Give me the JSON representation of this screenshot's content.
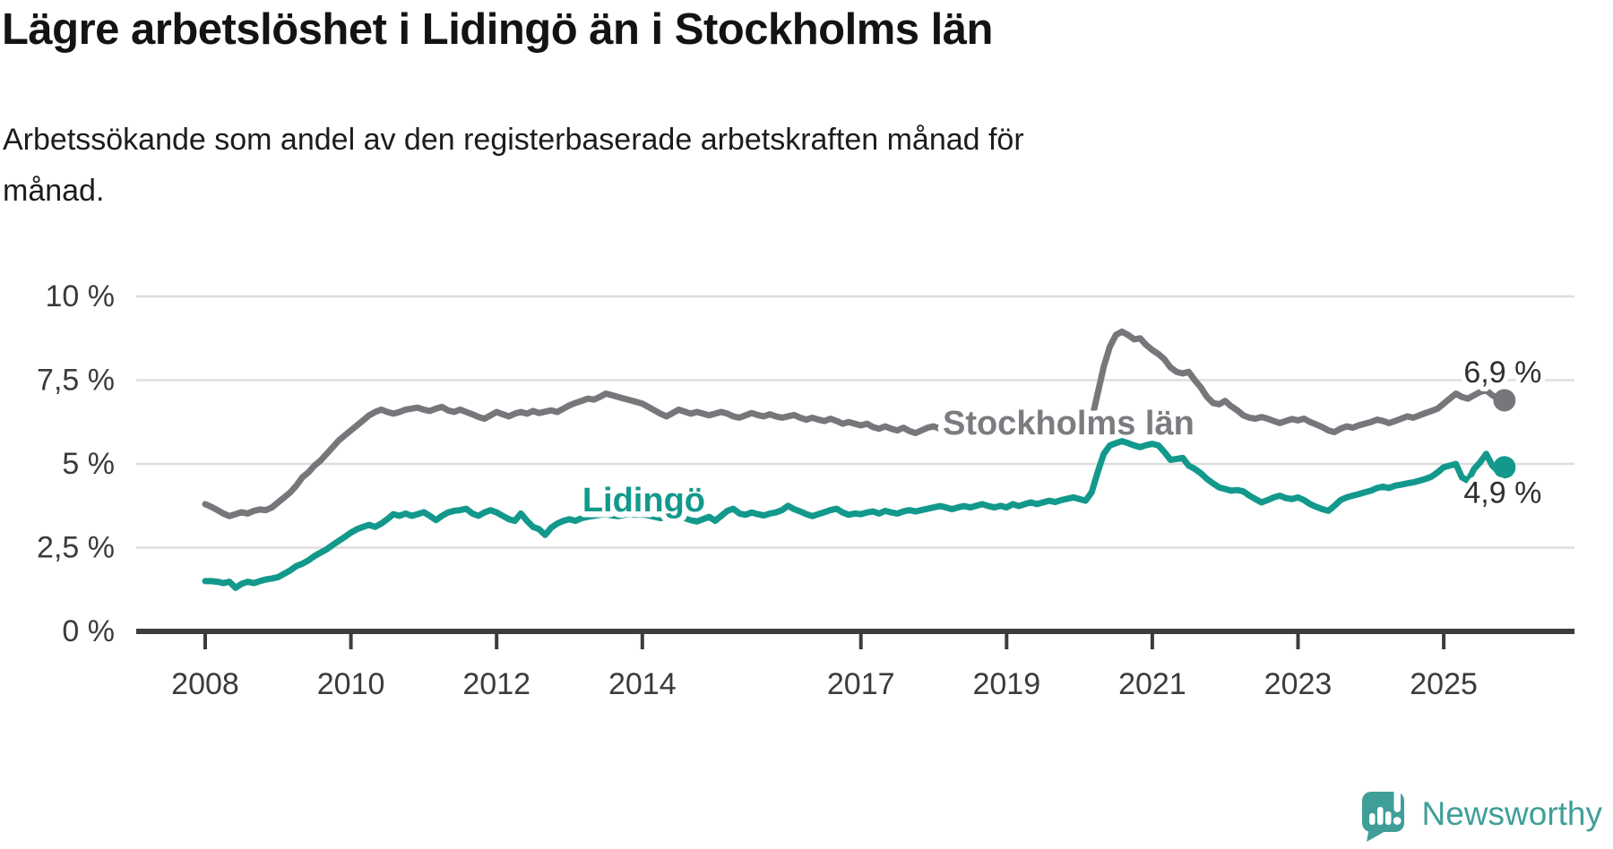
{
  "title": "Lägre arbetslöshet i Lidingö än i Stockholms län",
  "subtitle": {
    "line1": "Arbetssökande som andel av den registerbaserade arbetskraften månad för",
    "line2": "månad."
  },
  "footer": {
    "brand": "Newsworthy",
    "brand_color": "#3f9f98",
    "logo_icon": "speech-bubble-bar-chart-icon"
  },
  "chart_data": {
    "type": "line",
    "unit": "%",
    "title": "Lägre arbetslöshet i Lidingö än i Stockholms län",
    "xlabel": "",
    "ylabel": "",
    "ylim": [
      0,
      10
    ],
    "x_range_years": [
      2008,
      2025.9
    ],
    "grid": "horizontal-only",
    "legend_position": "inline-labels",
    "style": {
      "grid_color": "#dedede",
      "axis_color": "#3c3c3c",
      "text_color": "#3b3b3b",
      "background": "#ffffff"
    },
    "y_ticks": [
      {
        "value": 10,
        "label": "10 %"
      },
      {
        "value": 7.5,
        "label": "7,5 %"
      },
      {
        "value": 5,
        "label": "5 %"
      },
      {
        "value": 2.5,
        "label": "2,5 %"
      },
      {
        "value": 0,
        "label": "0 %"
      }
    ],
    "x_ticks": [
      {
        "value": 2008,
        "label": "2008"
      },
      {
        "value": 2010,
        "label": "2010"
      },
      {
        "value": 2012,
        "label": "2012"
      },
      {
        "value": 2014,
        "label": "2014"
      },
      {
        "value": 2017,
        "label": "2017"
      },
      {
        "value": 2019,
        "label": "2019"
      },
      {
        "value": 2021,
        "label": "2021"
      },
      {
        "value": 2023,
        "label": "2023"
      },
      {
        "value": 2025,
        "label": "2025"
      }
    ],
    "series": [
      {
        "id": "stockholms-lan",
        "name": "Stockholms län",
        "color": "#76767b",
        "label_color": "#7b7b80",
        "label_pos": {
          "year": 2019.85,
          "value": 6.23
        },
        "end_label": "6,9 %",
        "end_value": 6.9,
        "end_label_dy": -20,
        "start_year": 2008,
        "points_per_year": 12,
        "values": [
          3.8,
          3.72,
          3.62,
          3.52,
          3.44,
          3.5,
          3.56,
          3.52,
          3.6,
          3.64,
          3.62,
          3.7,
          3.85,
          4.0,
          4.15,
          4.35,
          4.6,
          4.75,
          4.95,
          5.1,
          5.3,
          5.5,
          5.7,
          5.85,
          6.0,
          6.15,
          6.3,
          6.45,
          6.55,
          6.62,
          6.55,
          6.5,
          6.55,
          6.62,
          6.65,
          6.68,
          6.62,
          6.58,
          6.65,
          6.7,
          6.6,
          6.55,
          6.62,
          6.55,
          6.48,
          6.4,
          6.35,
          6.45,
          6.55,
          6.48,
          6.42,
          6.5,
          6.55,
          6.5,
          6.58,
          6.52,
          6.56,
          6.6,
          6.55,
          6.65,
          6.75,
          6.82,
          6.88,
          6.95,
          6.92,
          7.0,
          7.1,
          7.05,
          7.0,
          6.95,
          6.9,
          6.85,
          6.8,
          6.7,
          6.6,
          6.5,
          6.42,
          6.52,
          6.62,
          6.56,
          6.5,
          6.55,
          6.5,
          6.45,
          6.5,
          6.55,
          6.5,
          6.42,
          6.38,
          6.45,
          6.52,
          6.46,
          6.42,
          6.48,
          6.42,
          6.38,
          6.42,
          6.46,
          6.38,
          6.32,
          6.38,
          6.32,
          6.28,
          6.35,
          6.28,
          6.2,
          6.25,
          6.2,
          6.15,
          6.2,
          6.1,
          6.05,
          6.12,
          6.05,
          6.0,
          6.08,
          5.98,
          5.92,
          6.0,
          6.08,
          6.12,
          6.05,
          5.98,
          5.92,
          5.98,
          5.9,
          5.85,
          5.9,
          5.85,
          5.82,
          5.88,
          5.92,
          5.98,
          5.92,
          5.98,
          6.05,
          6.1,
          6.05,
          6.0,
          6.05,
          6.0,
          5.95,
          6.0,
          6.05,
          6.0,
          6.05,
          6.3,
          7.1,
          7.9,
          8.5,
          8.85,
          8.95,
          8.85,
          8.72,
          8.75,
          8.55,
          8.4,
          8.28,
          8.12,
          7.88,
          7.75,
          7.7,
          7.75,
          7.5,
          7.28,
          7.0,
          6.82,
          6.78,
          6.88,
          6.72,
          6.6,
          6.45,
          6.38,
          6.35,
          6.4,
          6.35,
          6.28,
          6.22,
          6.28,
          6.34,
          6.3,
          6.35,
          6.25,
          6.18,
          6.1,
          6.0,
          5.95,
          6.05,
          6.12,
          6.08,
          6.15,
          6.2,
          6.25,
          6.32,
          6.28,
          6.22,
          6.28,
          6.35,
          6.42,
          6.38,
          6.45,
          6.52,
          6.58,
          6.65,
          6.8,
          6.95,
          7.1,
          7.0,
          6.95,
          7.05,
          7.15,
          7.2,
          7.05,
          6.95,
          6.9
        ]
      },
      {
        "id": "lidingo",
        "name": "Lidingö",
        "color": "#12998c",
        "label_color": "#12998c",
        "label_pos": {
          "year": 2014.02,
          "value": 3.93
        },
        "end_label": "4,9 %",
        "end_value": 4.9,
        "end_label_dy": 40,
        "start_year": 2008,
        "points_per_year": 12,
        "values": [
          1.5,
          1.5,
          1.48,
          1.44,
          1.48,
          1.3,
          1.42,
          1.48,
          1.44,
          1.5,
          1.55,
          1.58,
          1.62,
          1.72,
          1.82,
          1.95,
          2.02,
          2.12,
          2.25,
          2.35,
          2.45,
          2.58,
          2.7,
          2.82,
          2.95,
          3.05,
          3.12,
          3.18,
          3.12,
          3.22,
          3.35,
          3.5,
          3.45,
          3.52,
          3.45,
          3.5,
          3.56,
          3.45,
          3.32,
          3.45,
          3.55,
          3.6,
          3.62,
          3.66,
          3.52,
          3.45,
          3.55,
          3.62,
          3.55,
          3.45,
          3.35,
          3.3,
          3.52,
          3.3,
          3.12,
          3.05,
          2.88,
          3.1,
          3.22,
          3.3,
          3.35,
          3.3,
          3.38,
          3.42,
          3.45,
          3.48,
          3.5,
          3.46,
          3.44,
          3.48,
          3.5,
          3.48,
          3.5,
          3.46,
          3.42,
          3.38,
          3.42,
          3.45,
          3.42,
          3.38,
          3.32,
          3.28,
          3.35,
          3.42,
          3.3,
          3.45,
          3.6,
          3.66,
          3.52,
          3.48,
          3.55,
          3.5,
          3.46,
          3.52,
          3.55,
          3.62,
          3.75,
          3.65,
          3.58,
          3.5,
          3.44,
          3.5,
          3.56,
          3.62,
          3.66,
          3.55,
          3.48,
          3.52,
          3.5,
          3.55,
          3.58,
          3.52,
          3.6,
          3.55,
          3.52,
          3.58,
          3.62,
          3.58,
          3.62,
          3.66,
          3.7,
          3.74,
          3.7,
          3.65,
          3.7,
          3.74,
          3.7,
          3.75,
          3.8,
          3.74,
          3.7,
          3.75,
          3.7,
          3.8,
          3.74,
          3.8,
          3.85,
          3.8,
          3.85,
          3.9,
          3.86,
          3.92,
          3.96,
          4.0,
          3.95,
          3.9,
          4.15,
          4.75,
          5.3,
          5.55,
          5.62,
          5.68,
          5.62,
          5.55,
          5.5,
          5.56,
          5.6,
          5.55,
          5.35,
          5.12,
          5.15,
          5.18,
          4.95,
          4.85,
          4.72,
          4.55,
          4.42,
          4.3,
          4.25,
          4.2,
          4.22,
          4.18,
          4.05,
          3.95,
          3.85,
          3.92,
          4.0,
          4.05,
          3.98,
          3.95,
          4.0,
          3.92,
          3.8,
          3.72,
          3.65,
          3.6,
          3.75,
          3.92,
          4.0,
          4.05,
          4.1,
          4.15,
          4.2,
          4.28,
          4.32,
          4.28,
          4.35,
          4.38,
          4.42,
          4.45,
          4.5,
          4.55,
          4.62,
          4.75,
          4.9,
          4.95,
          5.0,
          4.6,
          4.5,
          4.85,
          5.05,
          5.3,
          4.95,
          4.78,
          4.9
        ]
      }
    ]
  }
}
